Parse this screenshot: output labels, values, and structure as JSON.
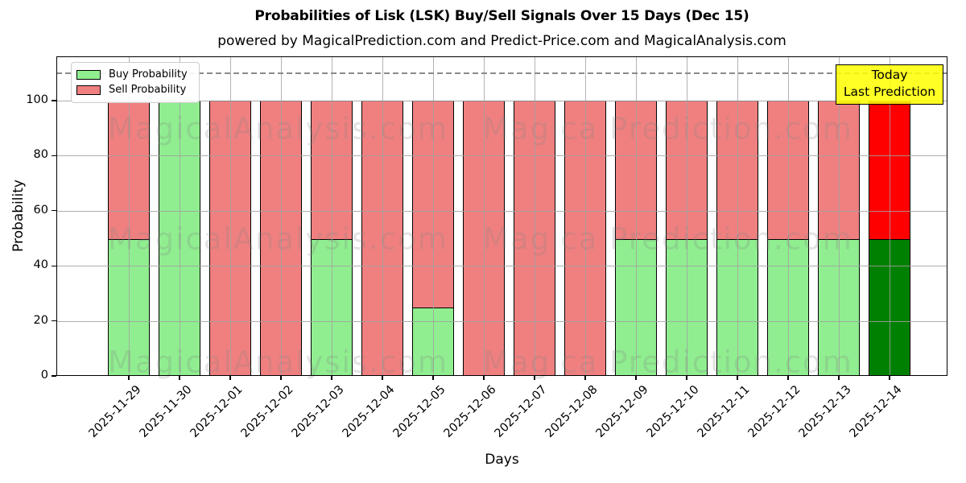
{
  "chart_data": {
    "type": "bar",
    "stacked": true,
    "title": "Probabilities of Lisk (LSK) Buy/Sell Signals Over 15 Days (Dec 15)",
    "subtitle": "powered by MagicalPrediction.com and Predict-Price.com and MagicalAnalysis.com",
    "xlabel": "Days",
    "ylabel": "Probability",
    "categories": [
      "2025-11-29",
      "2025-11-30",
      "2025-12-01",
      "2025-12-02",
      "2025-12-03",
      "2025-12-04",
      "2025-12-05",
      "2025-12-06",
      "2025-12-07",
      "2025-12-08",
      "2025-12-09",
      "2025-12-10",
      "2025-12-11",
      "2025-12-12",
      "2025-12-13",
      "2025-12-14"
    ],
    "series": [
      {
        "name": "Buy Probability",
        "color": "#90EE90",
        "values": [
          50,
          100,
          0,
          0,
          50,
          0,
          25,
          0,
          0,
          0,
          50,
          50,
          50,
          50,
          50,
          50
        ]
      },
      {
        "name": "Sell Probability",
        "color": "#F08080",
        "values": [
          50,
          0,
          100,
          100,
          50,
          100,
          75,
          100,
          100,
          100,
          50,
          50,
          50,
          50,
          50,
          50
        ]
      }
    ],
    "highlight_last_bar": {
      "category": "2025-12-14",
      "buy_color": "#008000",
      "sell_color": "#FF0000"
    },
    "yticks": [
      0,
      20,
      40,
      60,
      80,
      100
    ],
    "ylim": [
      0,
      116
    ],
    "dashed_line_y": 110,
    "grid": true,
    "legend_position": "upper left",
    "bar_edge_color": "#000000"
  },
  "annotation": {
    "line1": "Today",
    "line2": "Last Prediction",
    "bg_color": "#FFFF00"
  },
  "watermark": {
    "left_text": "MagicalAnalysis.com",
    "right_text": "Magica Prediction.com",
    "row_centers_y": [
      90,
      227,
      380
    ]
  }
}
